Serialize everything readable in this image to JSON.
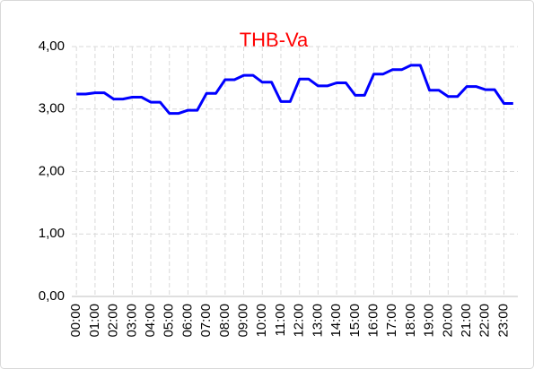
{
  "chart_data": {
    "type": "line",
    "title": "THB-Va",
    "categories": [
      "00:00",
      null,
      "01:00",
      null,
      "02:00",
      null,
      "03:00",
      null,
      "04:00",
      null,
      "05:00",
      null,
      "06:00",
      null,
      "07:00",
      null,
      "08:00",
      null,
      "09:00",
      null,
      "10:00",
      null,
      "11:00",
      null,
      "12:00",
      null,
      "13:00",
      null,
      "14:00",
      null,
      "15:00",
      null,
      "16:00",
      null,
      "17:00",
      null,
      "18:00",
      null,
      "19:00",
      null,
      "20:00",
      null,
      "21:00",
      null,
      "22:00",
      null,
      "23:00",
      null
    ],
    "series": [
      {
        "name": "THB-Va",
        "color": "#0000ff",
        "values": [
          3.24,
          3.24,
          3.26,
          3.26,
          3.16,
          3.16,
          3.19,
          3.19,
          3.11,
          3.11,
          2.93,
          2.93,
          2.98,
          2.98,
          3.25,
          3.25,
          3.47,
          3.47,
          3.54,
          3.54,
          3.43,
          3.43,
          3.12,
          3.12,
          3.48,
          3.48,
          3.37,
          3.37,
          3.42,
          3.42,
          3.22,
          3.22,
          3.56,
          3.56,
          3.63,
          3.63,
          3.7,
          3.7,
          3.3,
          3.3,
          3.2,
          3.2,
          3.36,
          3.36,
          3.31,
          3.31,
          3.09,
          3.09
        ]
      }
    ],
    "ylim": [
      0,
      4
    ],
    "yticks": [
      {
        "value": 0,
        "label": "0,00"
      },
      {
        "value": 1,
        "label": "1,00"
      },
      {
        "value": 2,
        "label": "2,00"
      },
      {
        "value": 3,
        "label": "3,00"
      },
      {
        "value": 4,
        "label": "4,00"
      }
    ],
    "grid": true,
    "title_color": "#ff0000"
  }
}
